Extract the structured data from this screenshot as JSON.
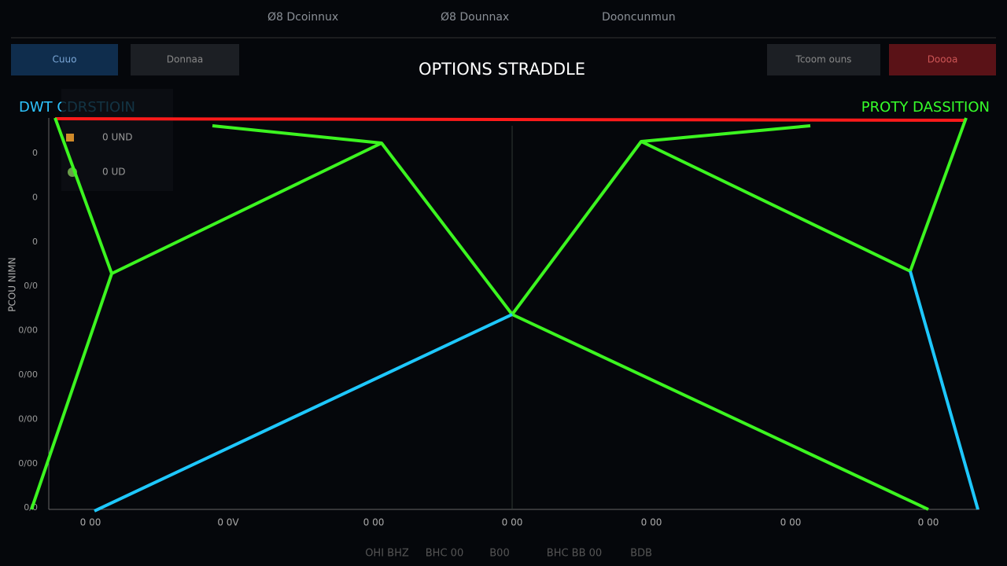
{
  "header": {
    "tabs": [
      "Ø8 Dcoinnux",
      "Ø8 Dounnax",
      "Dooncunmun"
    ]
  },
  "toolbar": {
    "left_buttons": [
      "Cuuo",
      "Donnaa"
    ],
    "right_buttons": [
      "Tcoom ouns",
      "Doooa"
    ]
  },
  "title": "OPTIONS STRADDLE",
  "labels": {
    "left": "DWT CDRSTIOIN",
    "right": "PROTY DASSITION"
  },
  "legend": {
    "items": [
      "0 UND",
      "0 UD"
    ]
  },
  "axis": {
    "y_label": "PCOU NIMN",
    "y_ticks": [
      "0",
      "0",
      "0",
      "0/0",
      "0/00",
      "0/00",
      "0/00",
      "0/00",
      "0/0"
    ],
    "x_ticks": [
      "0 00",
      "0 0V",
      "0 00",
      "0 00",
      "0 00",
      "0 00",
      "0 00"
    ]
  },
  "footer": {
    "items": [
      "OHI BHZ",
      "BHC 00",
      "B00",
      "BHC BB 00",
      "BDB"
    ]
  }
}
